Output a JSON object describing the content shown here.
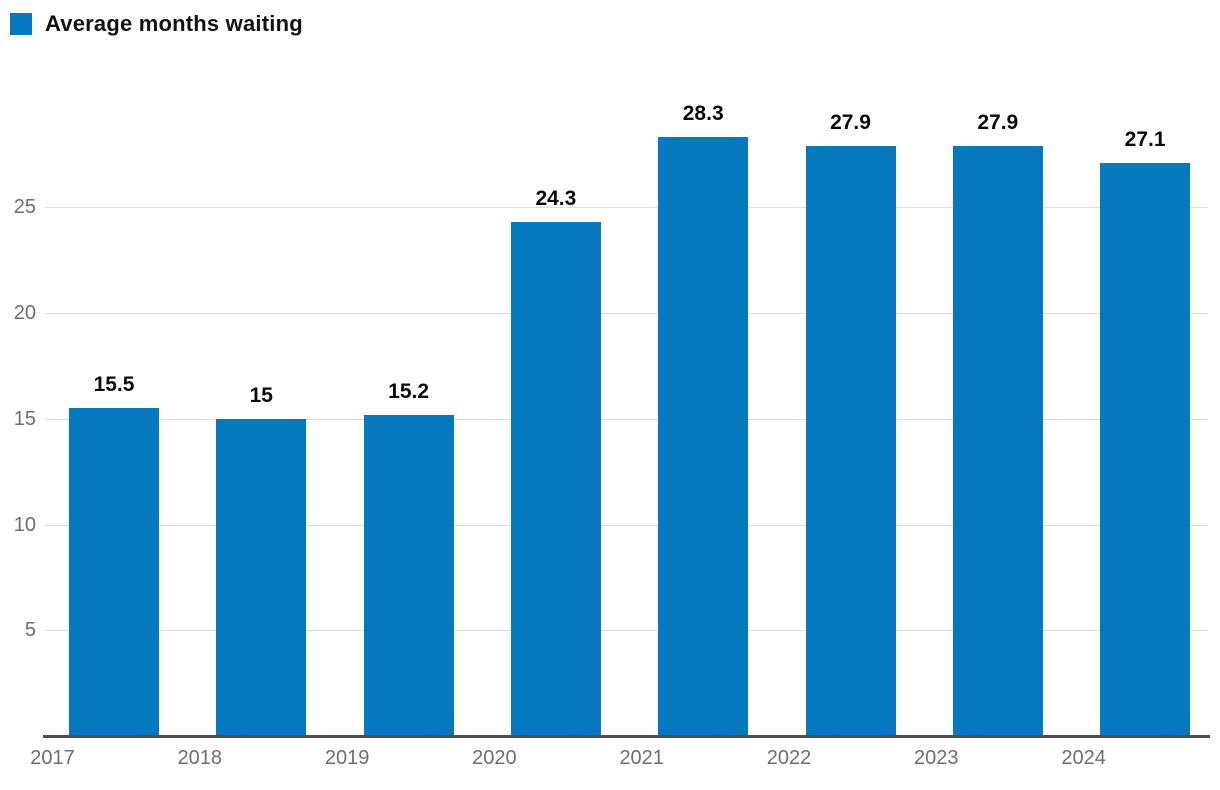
{
  "legend": {
    "label": "Average months waiting"
  },
  "chart_data": {
    "type": "bar",
    "title": "",
    "xlabel": "",
    "ylabel": "",
    "categories": [
      "2017",
      "2018",
      "2019",
      "2020",
      "2021",
      "2022",
      "2023",
      "2024"
    ],
    "values": [
      15.5,
      15,
      15.2,
      24.3,
      28.3,
      27.9,
      27.9,
      27.1
    ],
    "data_labels": [
      "15.5",
      "15",
      "15.2",
      "24.3",
      "28.3",
      "27.9",
      "27.9",
      "27.1"
    ],
    "series_name": "Average months waiting",
    "yticks": [
      5,
      10,
      15,
      20,
      25
    ],
    "ylim": [
      0,
      30
    ],
    "grid": true,
    "legend_position": "top-left",
    "data_labels_shown": true
  },
  "colors": {
    "bar": "#0678be",
    "grid": "#dcdcdc",
    "axis": "#4d4d4d",
    "tick_label": "#6e6e6e",
    "data_label": "#0a0a0a",
    "background": "#ffffff"
  }
}
